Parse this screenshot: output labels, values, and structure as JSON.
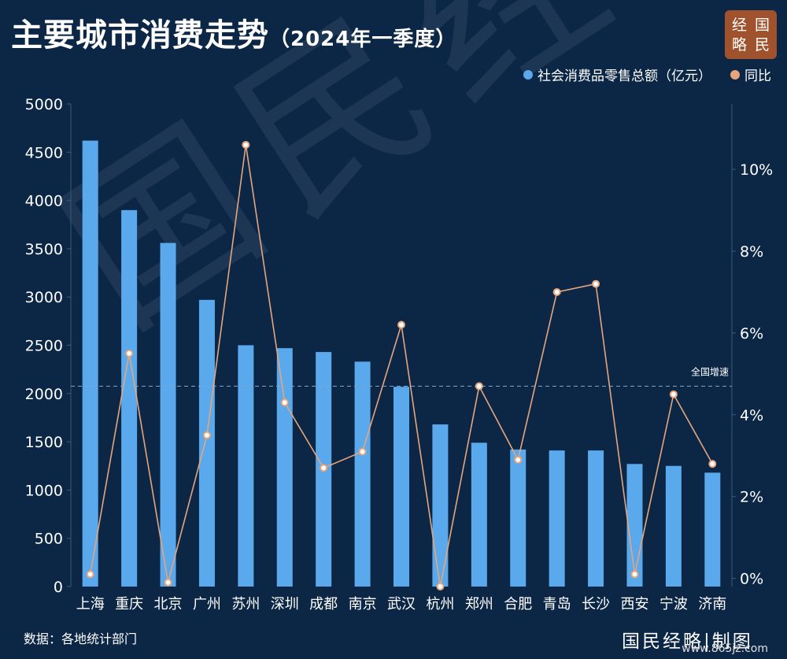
{
  "header": {
    "title": "主要城市消费走势",
    "subtitle": "（2024年一季度）"
  },
  "logo": {
    "chars": [
      "经",
      "国",
      "略",
      "民"
    ]
  },
  "watermark_text": "国民经略",
  "legend": [
    {
      "label": "社会消费品零售总额（亿元）",
      "color": "#5aa9ec"
    },
    {
      "label": "同比",
      "color": "#e5a57d"
    }
  ],
  "footer": {
    "source": "数据：各地统计部门",
    "credit": "国民经略|制图",
    "site": "www.865jz.com"
  },
  "chart_data": {
    "type": "bar",
    "categories": [
      "上海",
      "重庆",
      "北京",
      "广州",
      "苏州",
      "深圳",
      "成都",
      "南京",
      "武汉",
      "杭州",
      "郑州",
      "合肥",
      "青岛",
      "长沙",
      "西安",
      "宁波",
      "济南"
    ],
    "series": [
      {
        "name": "社会消费品零售总额（亿元）",
        "type": "bar",
        "axis": "left",
        "values": [
          4620,
          3900,
          3560,
          2970,
          2500,
          2470,
          2430,
          2330,
          2070,
          1680,
          1490,
          1420,
          1410,
          1410,
          1270,
          1250,
          1180
        ]
      },
      {
        "name": "同比",
        "type": "line",
        "axis": "right",
        "values": [
          0.1,
          5.5,
          -0.1,
          3.5,
          10.6,
          4.3,
          2.7,
          3.1,
          6.2,
          -0.2,
          4.7,
          2.9,
          7.0,
          7.2,
          0.1,
          4.5,
          2.8
        ]
      }
    ],
    "left_axis": {
      "ylim": [
        0,
        5000
      ],
      "ticks": [
        "0",
        "500",
        "1000",
        "1500",
        "2000",
        "2500",
        "3000",
        "3500",
        "4000",
        "4500",
        "5000"
      ]
    },
    "right_axis": {
      "ylim": [
        -0.2,
        11.6
      ],
      "ticks": [
        "0%",
        "2%",
        "4%",
        "6%",
        "8%",
        "10%"
      ],
      "tick_values": [
        0,
        2,
        4,
        6,
        8,
        10
      ]
    },
    "reference_line": {
      "label": "全国增速",
      "value": 4.7,
      "axis": "right"
    },
    "grid": false,
    "legend_position": "top-right"
  }
}
